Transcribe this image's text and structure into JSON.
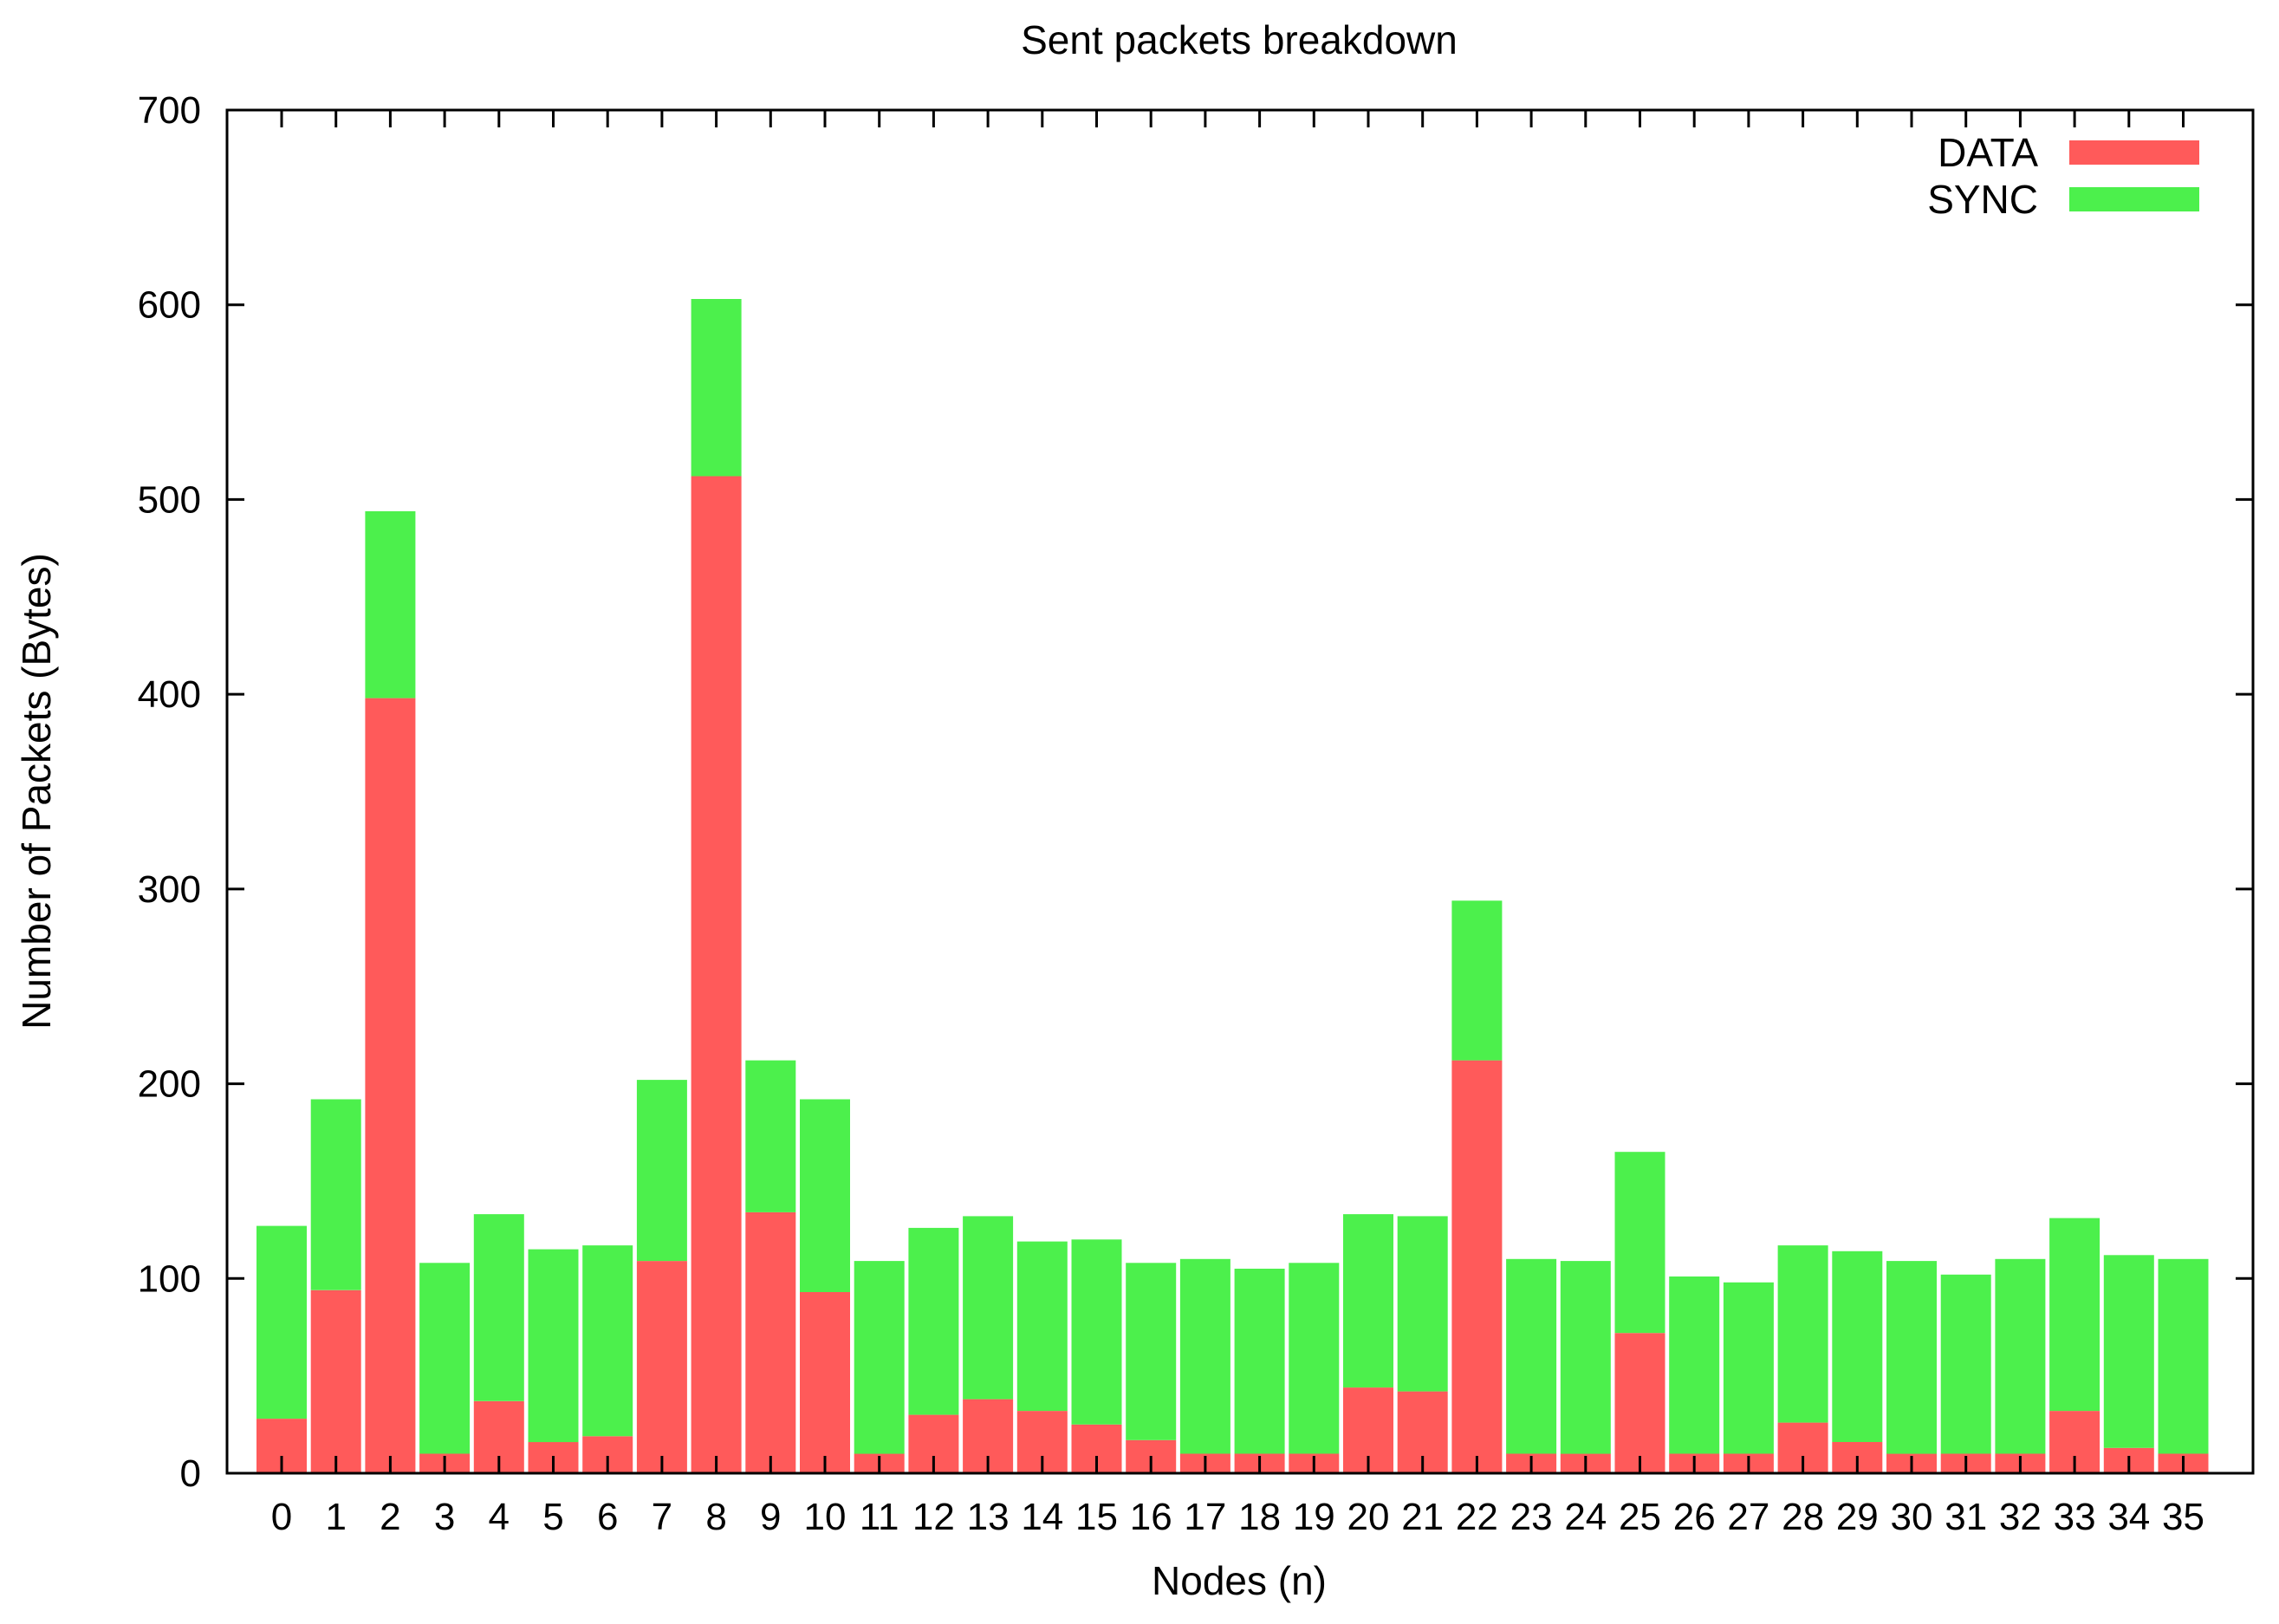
{
  "colors": {
    "data": "#ff5a5a",
    "sync": "#4cf04c",
    "axis": "#000000",
    "background": "#ffffff"
  },
  "chart_data": {
    "type": "bar",
    "stacked": true,
    "title": "Sent packets breakdown",
    "xlabel": "Nodes (n)",
    "ylabel": "Number of Packets (Bytes)",
    "ylim": [
      0,
      700
    ],
    "yticks": [
      "0",
      "100",
      "200",
      "300",
      "400",
      "500",
      "600",
      "700"
    ],
    "grid": false,
    "legend_position": "top-right",
    "categories": [
      "0",
      "1",
      "2",
      "3",
      "4",
      "5",
      "6",
      "7",
      "8",
      "9",
      "10",
      "11",
      "12",
      "13",
      "14",
      "15",
      "16",
      "17",
      "18",
      "19",
      "20",
      "21",
      "22",
      "23",
      "24",
      "25",
      "26",
      "27",
      "28",
      "29",
      "30",
      "31",
      "32",
      "33",
      "34",
      "35"
    ],
    "series": [
      {
        "name": "DATA",
        "color": "#ff5a5a",
        "values": [
          28,
          94,
          398,
          10,
          37,
          16,
          19,
          109,
          512,
          134,
          93,
          10,
          30,
          38,
          32,
          25,
          17,
          10,
          10,
          10,
          44,
          42,
          212,
          10,
          10,
          72,
          10,
          10,
          26,
          16,
          10,
          10,
          10,
          32,
          13,
          10
        ]
      },
      {
        "name": "SYNC",
        "color": "#4cf04c",
        "values": [
          99,
          98,
          96,
          98,
          96,
          99,
          98,
          93,
          91,
          78,
          99,
          99,
          96,
          94,
          87,
          95,
          91,
          100,
          95,
          98,
          89,
          90,
          82,
          100,
          99,
          93,
          91,
          88,
          91,
          98,
          99,
          92,
          100,
          99,
          99,
          100
        ]
      }
    ]
  }
}
